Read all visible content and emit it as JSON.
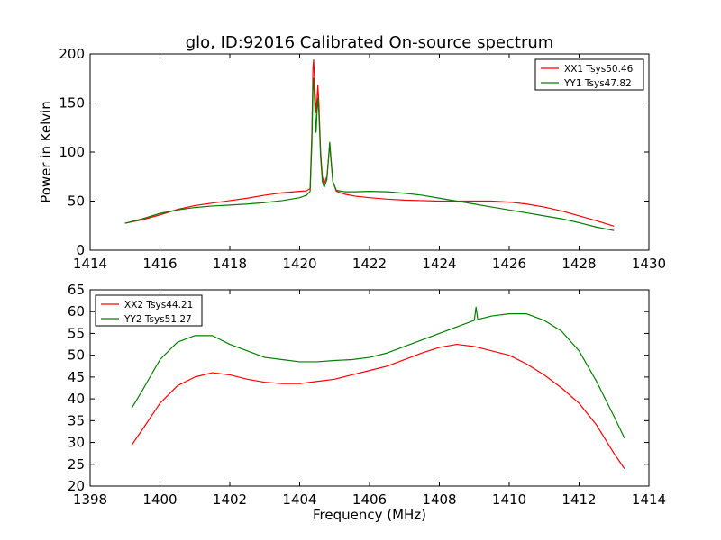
{
  "colors": {
    "xx": "#ff0000",
    "yy": "#008000",
    "background": "#ffffff",
    "axes": "#000000"
  },
  "chart_data": [
    {
      "type": "line",
      "title": "glo, ID:92016 Calibrated On-source spectrum",
      "xlabel": "",
      "ylabel": "Power in Kelvin",
      "xlim": [
        1414,
        1430
      ],
      "ylim": [
        0,
        200
      ],
      "xticks": [
        "1414",
        "1416",
        "1418",
        "1420",
        "1422",
        "1424",
        "1426",
        "1428",
        "1430"
      ],
      "yticks": [
        "0",
        "50",
        "100",
        "150",
        "200"
      ],
      "grid": false,
      "legend_position": "top-right",
      "series": [
        {
          "name": "XX1 Tsys50.46",
          "color": "#ff0000",
          "points": [
            [
              1415.0,
              27.5
            ],
            [
              1415.5,
              31.0
            ],
            [
              1416.0,
              36.0
            ],
            [
              1416.5,
              41.5
            ],
            [
              1417.0,
              45.5
            ],
            [
              1417.5,
              48.0
            ],
            [
              1418.0,
              50.5
            ],
            [
              1418.5,
              53.0
            ],
            [
              1419.0,
              56.0
            ],
            [
              1419.5,
              58.5
            ],
            [
              1420.0,
              60.0
            ],
            [
              1420.2,
              60.5
            ],
            [
              1420.3,
              63.0
            ],
            [
              1420.35,
              120.0
            ],
            [
              1420.38,
              185.0
            ],
            [
              1420.4,
              194.0
            ],
            [
              1420.43,
              170.0
            ],
            [
              1420.47,
              140.0
            ],
            [
              1420.5,
              155.0
            ],
            [
              1420.52,
              168.0
            ],
            [
              1420.55,
              150.0
            ],
            [
              1420.6,
              100.0
            ],
            [
              1420.65,
              75.0
            ],
            [
              1420.7,
              68.0
            ],
            [
              1420.78,
              75.0
            ],
            [
              1420.83,
              95.0
            ],
            [
              1420.86,
              108.0
            ],
            [
              1420.9,
              90.0
            ],
            [
              1420.95,
              70.0
            ],
            [
              1421.05,
              60.0
            ],
            [
              1421.3,
              57.0
            ],
            [
              1421.6,
              55.0
            ],
            [
              1422.0,
              53.5
            ],
            [
              1422.5,
              52.0
            ],
            [
              1423.0,
              51.0
            ],
            [
              1423.5,
              50.5
            ],
            [
              1424.0,
              50.0
            ],
            [
              1424.5,
              50.0
            ],
            [
              1425.0,
              50.0
            ],
            [
              1425.5,
              50.0
            ],
            [
              1426.0,
              49.0
            ],
            [
              1426.5,
              47.0
            ],
            [
              1427.0,
              44.0
            ],
            [
              1427.5,
              40.0
            ],
            [
              1428.0,
              35.0
            ],
            [
              1428.5,
              30.0
            ],
            [
              1429.0,
              24.5
            ]
          ]
        },
        {
          "name": "YY1 Tsys47.82",
          "color": "#008000",
          "points": [
            [
              1415.0,
              27.5
            ],
            [
              1415.5,
              32.0
            ],
            [
              1416.0,
              37.5
            ],
            [
              1416.5,
              41.0
            ],
            [
              1417.0,
              43.5
            ],
            [
              1417.5,
              45.0
            ],
            [
              1418.0,
              46.0
            ],
            [
              1418.5,
              47.0
            ],
            [
              1419.0,
              48.5
            ],
            [
              1419.5,
              50.5
            ],
            [
              1420.0,
              53.5
            ],
            [
              1420.2,
              56.0
            ],
            [
              1420.3,
              60.0
            ],
            [
              1420.35,
              110.0
            ],
            [
              1420.38,
              165.0
            ],
            [
              1420.4,
              175.0
            ],
            [
              1420.43,
              150.0
            ],
            [
              1420.47,
              120.0
            ],
            [
              1420.5,
              143.0
            ],
            [
              1420.52,
              155.0
            ],
            [
              1420.55,
              140.0
            ],
            [
              1420.6,
              95.0
            ],
            [
              1420.65,
              70.0
            ],
            [
              1420.7,
              64.0
            ],
            [
              1420.78,
              72.0
            ],
            [
              1420.83,
              95.0
            ],
            [
              1420.86,
              110.0
            ],
            [
              1420.9,
              92.0
            ],
            [
              1420.95,
              70.0
            ],
            [
              1421.05,
              61.0
            ],
            [
              1421.3,
              59.5
            ],
            [
              1421.6,
              59.5
            ],
            [
              1422.0,
              60.0
            ],
            [
              1422.5,
              59.5
            ],
            [
              1423.0,
              58.0
            ],
            [
              1423.5,
              56.0
            ],
            [
              1424.0,
              53.0
            ],
            [
              1424.5,
              50.0
            ],
            [
              1425.0,
              47.0
            ],
            [
              1425.5,
              44.0
            ],
            [
              1426.0,
              41.0
            ],
            [
              1426.5,
              38.0
            ],
            [
              1427.0,
              35.0
            ],
            [
              1427.5,
              32.0
            ],
            [
              1428.0,
              28.0
            ],
            [
              1428.5,
              23.5
            ],
            [
              1429.0,
              20.0
            ]
          ]
        }
      ]
    },
    {
      "type": "line",
      "title": "",
      "xlabel": "Frequency (MHz)",
      "ylabel": "",
      "xlim": [
        1398,
        1414
      ],
      "ylim": [
        20,
        65
      ],
      "xticks": [
        "1398",
        "1400",
        "1402",
        "1404",
        "1406",
        "1408",
        "1410",
        "1412",
        "1414"
      ],
      "yticks": [
        "20",
        "25",
        "30",
        "35",
        "40",
        "45",
        "50",
        "55",
        "60",
        "65"
      ],
      "grid": false,
      "legend_position": "top-left",
      "series": [
        {
          "name": "XX2 Tsys44.21",
          "color": "#ff0000",
          "points": [
            [
              1399.2,
              29.5
            ],
            [
              1399.5,
              33.0
            ],
            [
              1400.0,
              39.0
            ],
            [
              1400.5,
              43.0
            ],
            [
              1401.0,
              45.0
            ],
            [
              1401.5,
              46.0
            ],
            [
              1402.0,
              45.5
            ],
            [
              1402.5,
              44.5
            ],
            [
              1403.0,
              43.8
            ],
            [
              1403.5,
              43.5
            ],
            [
              1404.0,
              43.5
            ],
            [
              1404.5,
              44.0
            ],
            [
              1405.0,
              44.5
            ],
            [
              1405.5,
              45.5
            ],
            [
              1406.0,
              46.5
            ],
            [
              1406.5,
              47.5
            ],
            [
              1407.0,
              49.0
            ],
            [
              1407.5,
              50.5
            ],
            [
              1408.0,
              51.8
            ],
            [
              1408.5,
              52.5
            ],
            [
              1409.0,
              52.0
            ],
            [
              1409.5,
              51.0
            ],
            [
              1410.0,
              50.0
            ],
            [
              1410.5,
              48.0
            ],
            [
              1411.0,
              45.5
            ],
            [
              1411.5,
              42.5
            ],
            [
              1412.0,
              39.0
            ],
            [
              1412.5,
              34.0
            ],
            [
              1413.0,
              27.5
            ],
            [
              1413.3,
              24.0
            ]
          ]
        },
        {
          "name": "YY2 Tsys51.27",
          "color": "#008000",
          "points": [
            [
              1399.2,
              38.0
            ],
            [
              1399.5,
              42.0
            ],
            [
              1400.0,
              49.0
            ],
            [
              1400.5,
              53.0
            ],
            [
              1401.0,
              54.5
            ],
            [
              1401.5,
              54.5
            ],
            [
              1402.0,
              52.5
            ],
            [
              1402.5,
              51.0
            ],
            [
              1403.0,
              49.5
            ],
            [
              1403.5,
              49.0
            ],
            [
              1404.0,
              48.5
            ],
            [
              1404.5,
              48.5
            ],
            [
              1405.0,
              48.8
            ],
            [
              1405.5,
              49.0
            ],
            [
              1406.0,
              49.5
            ],
            [
              1406.5,
              50.5
            ],
            [
              1407.0,
              52.0
            ],
            [
              1407.5,
              53.5
            ],
            [
              1408.0,
              55.0
            ],
            [
              1408.5,
              56.5
            ],
            [
              1409.0,
              58.0
            ],
            [
              1409.05,
              61.0
            ],
            [
              1409.1,
              58.2
            ],
            [
              1409.5,
              59.0
            ],
            [
              1410.0,
              59.5
            ],
            [
              1410.5,
              59.5
            ],
            [
              1411.0,
              58.0
            ],
            [
              1411.5,
              55.5
            ],
            [
              1412.0,
              51.0
            ],
            [
              1412.5,
              44.0
            ],
            [
              1413.0,
              36.0
            ],
            [
              1413.3,
              31.0
            ]
          ]
        }
      ]
    }
  ]
}
